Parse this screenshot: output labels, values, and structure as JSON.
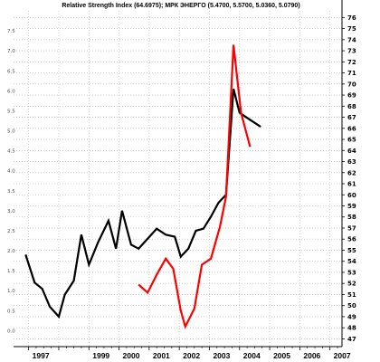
{
  "chart_data": {
    "type": "line",
    "title": "Relative Strength Index (64.6975); МРК ЭНЕРГО (5.4700, 5.5700, 5.0360, 5.0790)",
    "xlabel": "",
    "ylabel": "",
    "x_tick_labels": [
      "1997",
      "1999",
      "2000",
      "2001",
      "2002",
      "2003",
      "2004",
      "2005",
      "2006",
      "2007"
    ],
    "left_axis": {
      "tick_labels": [
        "0.0",
        "0.5",
        "1.0",
        "1.5",
        "2.0",
        "2.5",
        "3.0",
        "3.5",
        "4.0",
        "4.5",
        "5.0",
        "5.5",
        "6.0",
        "6.5",
        "7.0",
        "7.5"
      ],
      "ylim": [
        -0.4,
        8.0
      ]
    },
    "right_axis": {
      "tick_labels": [
        "47",
        "48",
        "49",
        "50",
        "51",
        "52",
        "53",
        "54",
        "55",
        "56",
        "57",
        "58",
        "59",
        "60",
        "61",
        "62",
        "63",
        "64",
        "65",
        "66",
        "67",
        "68",
        "69",
        "70",
        "71",
        "72",
        "73",
        "74",
        "75",
        "76"
      ],
      "ylim": [
        46.3,
        76.6
      ]
    },
    "grid": true,
    "series": [
      {
        "color": "#000000",
        "axis": "left",
        "x": [
          1996.9,
          1997.2,
          1997.45,
          1997.7,
          1998.0,
          1998.2,
          1998.5,
          1998.75,
          1999.0,
          1999.3,
          1999.65,
          1999.9,
          2000.1,
          2000.4,
          2000.65,
          2000.95,
          2001.25,
          2001.55,
          2001.85,
          2002.05,
          2002.3,
          2002.55,
          2002.8,
          2003.05,
          2003.3,
          2003.55,
          2003.8,
          2004.0,
          2004.3,
          2004.7
        ],
        "y": [
          1.9,
          1.2,
          1.05,
          0.6,
          0.35,
          0.9,
          1.25,
          2.4,
          1.65,
          2.2,
          2.75,
          2.05,
          3.0,
          2.15,
          2.05,
          2.3,
          2.55,
          2.4,
          2.35,
          1.85,
          2.05,
          2.5,
          2.55,
          2.85,
          3.2,
          3.4,
          6.05,
          5.45,
          5.3,
          5.1
        ]
      },
      {
        "color": "#ff0000",
        "axis": "left",
        "x": [
          2000.65,
          2000.95,
          2001.25,
          2001.55,
          2001.8,
          2002.05,
          2002.2,
          2002.5,
          2002.75,
          2003.05,
          2003.35,
          2003.55,
          2003.8,
          2004.05,
          2004.35
        ],
        "y": [
          1.15,
          0.95,
          1.4,
          1.8,
          1.55,
          0.5,
          0.1,
          0.55,
          1.65,
          1.8,
          2.6,
          3.35,
          7.15,
          5.45,
          4.6
        ]
      }
    ]
  }
}
